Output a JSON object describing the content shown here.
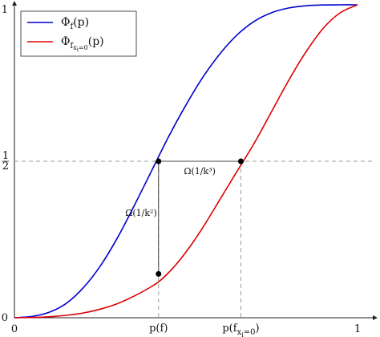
{
  "chart_data": {
    "type": "line",
    "xlim": [
      0,
      1
    ],
    "ylim": [
      0,
      1
    ],
    "x_ticks": [
      {
        "value": 0,
        "label": "0"
      },
      {
        "value": 1,
        "label": "1"
      }
    ],
    "y_ticks": [
      {
        "value": 0,
        "label": "0"
      },
      {
        "value": 1,
        "label": "1"
      }
    ],
    "y_half_label": {
      "num": "1",
      "den": "2"
    },
    "x_marker_labels": {
      "pf": "p(f)",
      "pfx0": "p(f_{x_i=0})"
    },
    "grid": false,
    "legend_position": "top-left",
    "series": [
      {
        "name": "Φ_f(p)",
        "color": "#0000cc",
        "points": [
          [
            0.0,
            0.0
          ],
          [
            0.05,
            0.004
          ],
          [
            0.1,
            0.017
          ],
          [
            0.15,
            0.045
          ],
          [
            0.2,
            0.095
          ],
          [
            0.25,
            0.165
          ],
          [
            0.3,
            0.255
          ],
          [
            0.35,
            0.36
          ],
          [
            0.4,
            0.47
          ],
          [
            0.45,
            0.58
          ],
          [
            0.5,
            0.68
          ],
          [
            0.55,
            0.77
          ],
          [
            0.6,
            0.845
          ],
          [
            0.65,
            0.905
          ],
          [
            0.7,
            0.948
          ],
          [
            0.75,
            0.975
          ],
          [
            0.8,
            0.99
          ],
          [
            0.85,
            0.997
          ],
          [
            0.9,
            0.9995
          ],
          [
            0.95,
            1.0
          ],
          [
            1.0,
            1.0
          ]
        ]
      },
      {
        "name": "Φ_{f_{x_i=0}}(p)",
        "color": "#dd0000",
        "points": [
          [
            0.0,
            0.0
          ],
          [
            0.1,
            0.003
          ],
          [
            0.2,
            0.015
          ],
          [
            0.3,
            0.045
          ],
          [
            0.4,
            0.1
          ],
          [
            0.45,
            0.145
          ],
          [
            0.5,
            0.21
          ],
          [
            0.55,
            0.29
          ],
          [
            0.6,
            0.38
          ],
          [
            0.65,
            0.47
          ],
          [
            0.7,
            0.56
          ],
          [
            0.75,
            0.66
          ],
          [
            0.8,
            0.76
          ],
          [
            0.85,
            0.85
          ],
          [
            0.9,
            0.925
          ],
          [
            0.95,
            0.975
          ],
          [
            1.0,
            1.0
          ]
        ]
      }
    ],
    "reference_y": 0.5,
    "points_of_interest": {
      "pf": 0.42,
      "pfx0": 0.66,
      "upper_y": 0.5,
      "lower_y": 0.14
    },
    "annotations": {
      "horizontal": "Ω(1/k³)",
      "vertical": "Ω(1/k²)"
    }
  }
}
